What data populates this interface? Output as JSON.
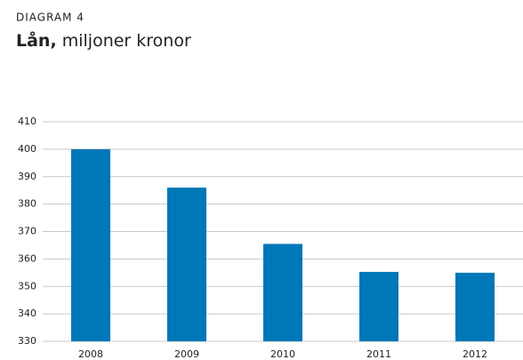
{
  "chart_data": {
    "type": "bar",
    "label": "DIAGRAM 4",
    "title": "Lån,",
    "unit": "miljoner kronor",
    "categories": [
      "2008",
      "2009",
      "2010",
      "2011",
      "2012"
    ],
    "values": [
      400,
      386,
      365.5,
      355.3,
      355
    ],
    "color": "#0077b6",
    "ylim": [
      330,
      410
    ],
    "yticks": [
      330,
      340,
      350,
      360,
      370,
      380,
      390,
      400,
      410
    ],
    "grid": true
  }
}
